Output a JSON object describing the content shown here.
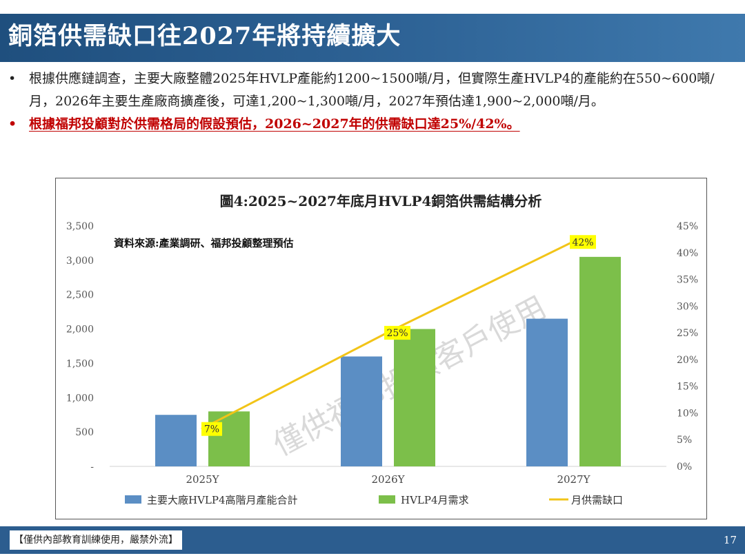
{
  "slide": {
    "title": "銅箔供需缺口往2027年將持續擴大",
    "bullets": [
      {
        "text": "根據供應鏈調查，主要大廠整體2025年HVLP產能約1200~1500噸/月，但實際生產HVLP4的產能約在550~600噸/月，2026年主要生產廠商擴產後，可達1,200~1,300噸/月，2027年預估達1,900~2,000噸/月。",
        "style": "normal"
      },
      {
        "text": "根據福邦投顧對於供需格局的假設預估，2026~2027年的供需缺口達25%/42%。",
        "style": "red-underline"
      }
    ],
    "bullet_symbol": "•",
    "footer_label": "【僅供內部教育訓練使用，嚴禁外流】",
    "page_number": "17",
    "watermark": "僅供福邦投顧客戶使用"
  },
  "chart_data": {
    "type": "bar",
    "title": "圖4:2025~2027年底月HVLP4銅箔供需結構分析",
    "source_note": "資料來源:產業調研、福邦投顧整理預估",
    "categories": [
      "2025Y",
      "2026Y",
      "2027Y"
    ],
    "series": [
      {
        "name": "主要大廠HVLP4高階月產能合計",
        "type": "bar",
        "color": "#5b8ec4",
        "values": [
          750,
          1600,
          2150
        ]
      },
      {
        "name": "HVLP4月需求",
        "type": "bar",
        "color": "#7cbf4a",
        "values": [
          800,
          2000,
          3050
        ]
      },
      {
        "name": "月供需缺口",
        "type": "line",
        "color": "#f2c418",
        "axis": "right",
        "values": [
          7,
          25,
          42
        ],
        "labels": [
          "7%",
          "25%",
          "42%"
        ]
      }
    ],
    "y_left": {
      "min": 0,
      "max": 3500,
      "ticks": [
        "-",
        "500",
        "1,000",
        "1,500",
        "2,000",
        "2,500",
        "3,000",
        "3,500"
      ]
    },
    "y_right": {
      "min": 0,
      "max": 45,
      "ticks": [
        "0%",
        "5%",
        "10%",
        "15%",
        "20%",
        "25%",
        "30%",
        "35%",
        "40%",
        "45%"
      ]
    },
    "grid": false,
    "legend_position": "bottom"
  }
}
